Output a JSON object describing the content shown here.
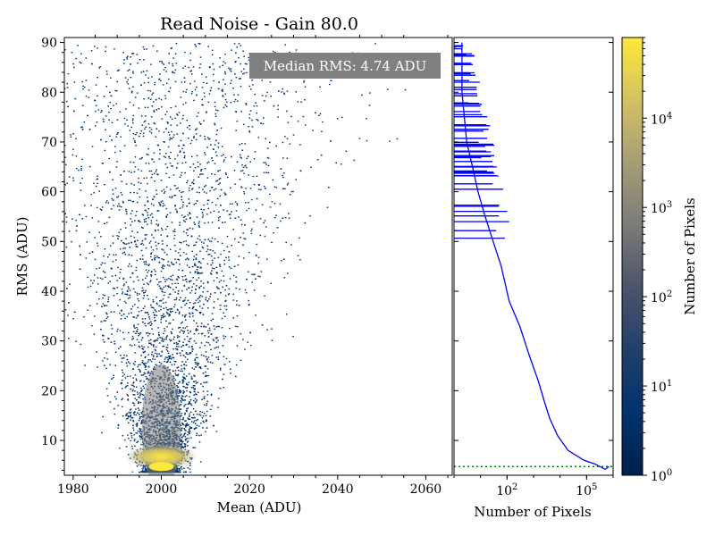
{
  "chart_data": [
    {
      "type": "heatmap",
      "title": "Read Noise - Gain 80.0",
      "xlabel": "Mean (ADU)",
      "ylabel": "RMS (ADU)",
      "xlim": [
        1978,
        2066
      ],
      "ylim": [
        3,
        91
      ],
      "xticks": [
        1980,
        2000,
        2020,
        2040,
        2060
      ],
      "yticks": [
        10,
        20,
        30,
        40,
        50,
        60,
        70,
        80,
        90
      ],
      "annotation": "Median RMS: 4.74 ADU",
      "peak": {
        "x": 2000,
        "y": 4.74
      },
      "grid": false
    },
    {
      "type": "line",
      "xlabel": "Number of Pixels",
      "ylabel": "",
      "xscale": "log",
      "xlim": [
        1,
        1000000
      ],
      "ylim": [
        3,
        91
      ],
      "xticks": [
        {
          "value": 100,
          "label": "10",
          "exp": "2"
        },
        {
          "value": 100000,
          "label": "10",
          "exp": "5"
        }
      ],
      "series": [
        {
          "color": "#0000ff",
          "x": [
            700000,
            500000,
            200000,
            80000,
            20000,
            8000,
            4000,
            2500,
            1500,
            700,
            300,
            120,
            60,
            30,
            15,
            8,
            5,
            3,
            2,
            2
          ],
          "y": [
            4.74,
            4.2,
            5.3,
            6.0,
            8.0,
            11.0,
            14.5,
            18.0,
            22.0,
            27.0,
            33.0,
            38.0,
            45.0,
            50.0,
            55.0,
            60.0,
            65.0,
            70.0,
            80.0,
            90.0
          ]
        }
      ],
      "reference_line": {
        "y": 4.74,
        "color": "#008000",
        "style": "dotted"
      }
    },
    {
      "type": "colorbar",
      "label": "Number of Pixels",
      "scale": "log",
      "range": [
        1,
        80000
      ],
      "ticks": [
        {
          "value": 1,
          "label": "10",
          "exp": "0"
        },
        {
          "value": 10,
          "label": "10",
          "exp": "1"
        },
        {
          "value": 100,
          "label": "10",
          "exp": "2"
        },
        {
          "value": 1000,
          "label": "10",
          "exp": "3"
        },
        {
          "value": 10000,
          "label": "10",
          "exp": "4"
        }
      ],
      "colormap": [
        "#00204c",
        "#00336f",
        "#213f6b",
        "#4c546c",
        "#7c7b78",
        "#a69d75",
        "#d3c164",
        "#fee838"
      ]
    }
  ]
}
